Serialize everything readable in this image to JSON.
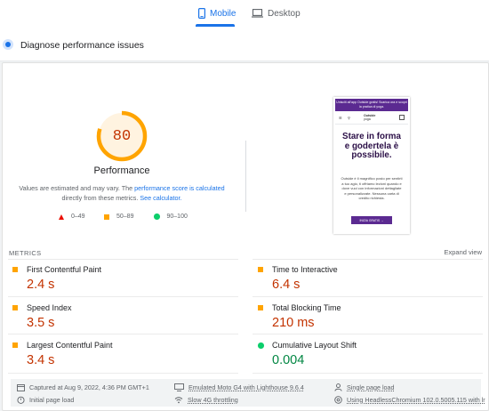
{
  "tabs": [
    {
      "label": "Mobile",
      "icon": "mobile-icon",
      "active": true
    },
    {
      "label": "Desktop",
      "icon": "desktop-icon",
      "active": false
    }
  ],
  "header": {
    "title": "Diagnose performance issues"
  },
  "score": {
    "value": "80",
    "fraction": 0.8,
    "label": "Performance",
    "desc_before": "Values are estimated and may vary. The ",
    "desc_link1": "performance score is calculated",
    "desc_middle": " directly from these metrics. ",
    "desc_link2": "See calculator.",
    "color": "#ffa400"
  },
  "legend": [
    {
      "shape": "triangle",
      "label": "0–49",
      "color": "#eb0f00"
    },
    {
      "shape": "square",
      "label": "50–89",
      "color": "#ffa400"
    },
    {
      "shape": "circle",
      "label": "90–100",
      "color": "#0cce6b"
    }
  ],
  "screenshot": {
    "banner": "Unisciti all'app Outside gratis! Scarica ora e scopri la pratica di yoga.",
    "logo_top": "Outside",
    "logo_bottom": "yoga",
    "headline": "Stare in forma e godertela è possibile.",
    "body": "Outside è il magnifico posto per sentirti a tuo agio, ti offriamo lezioni quando e dove vuoi con informazioni dettagliate e personalizzate. Nessuna carta di credito richiesta.",
    "cta": "INIZIA GRATIS →"
  },
  "metrics": {
    "heading": "METRICS",
    "expand": "Expand view",
    "items": [
      {
        "title": "First Contentful Paint",
        "value": "2.4 s",
        "status": "average"
      },
      {
        "title": "Time to Interactive",
        "value": "6.4 s",
        "status": "average"
      },
      {
        "title": "Speed Index",
        "value": "3.5 s",
        "status": "average"
      },
      {
        "title": "Total Blocking Time",
        "value": "210 ms",
        "status": "average"
      },
      {
        "title": "Largest Contentful Paint",
        "value": "3.4 s",
        "status": "average"
      },
      {
        "title": "Cumulative Layout Shift",
        "value": "0.004",
        "status": "good"
      }
    ]
  },
  "footer": [
    {
      "icon": "calendar-icon",
      "text": "Captured at Aug 9, 2022, 4:36 PM GMT+1"
    },
    {
      "icon": "device-icon",
      "text": "Emulated Moto G4 with Lighthouse 9.6.4"
    },
    {
      "icon": "user-icon",
      "text": "Single page load"
    },
    {
      "icon": "timer-icon",
      "text": "Initial page load"
    },
    {
      "icon": "network-icon",
      "text": "Slow 4G throttling"
    },
    {
      "icon": "browser-icon",
      "text": "Using HeadlessChromium 102.0.5005.115 with lr"
    }
  ]
}
